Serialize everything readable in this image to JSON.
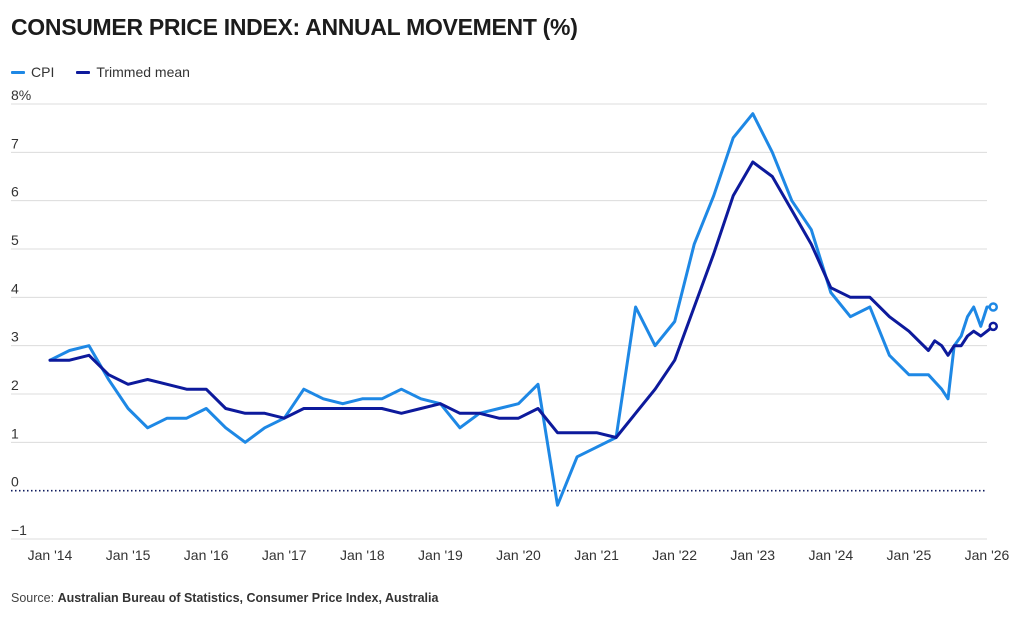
{
  "header": {
    "title": "CONSUMER PRICE INDEX: ANNUAL MOVEMENT (%)"
  },
  "legend": [
    {
      "label": "CPI",
      "color": "#1e88e5"
    },
    {
      "label": "Trimmed mean",
      "color": "#0d1a9c"
    }
  ],
  "footer": {
    "source_label": "Source: ",
    "source_text": "Australian Bureau of Statistics, Consumer Price Index, Australia"
  },
  "chart_data": {
    "type": "line",
    "ylim": [
      -1,
      8
    ],
    "yticks": [
      "−1",
      "0",
      "1",
      "2",
      "3",
      "4",
      "5",
      "6",
      "7",
      "8%"
    ],
    "ytick_values": [
      -1,
      0,
      1,
      2,
      3,
      4,
      5,
      6,
      7,
      8
    ],
    "xticks": [
      "Jan '14",
      "Jan '15",
      "Jan '16",
      "Jan '17",
      "Jan '18",
      "Jan '19",
      "Jan '20",
      "Jan '21",
      "Jan '22",
      "Jan '23",
      "Jan '24",
      "Jan '25",
      "Jan '26"
    ],
    "xtick_values": [
      2014,
      2015,
      2016,
      2017,
      2018,
      2019,
      2020,
      2021,
      2022,
      2023,
      2024,
      2025,
      2026
    ],
    "xlim": [
      2014,
      2026
    ],
    "zero_line": true,
    "grid": true,
    "legend_position": "top-left",
    "series": [
      {
        "name": "CPI",
        "color": "#1e88e5",
        "points": [
          [
            2014.0,
            2.7
          ],
          [
            2014.25,
            2.9
          ],
          [
            2014.5,
            3.0
          ],
          [
            2014.75,
            2.3
          ],
          [
            2015.0,
            1.7
          ],
          [
            2015.25,
            1.3
          ],
          [
            2015.5,
            1.5
          ],
          [
            2015.75,
            1.5
          ],
          [
            2016.0,
            1.7
          ],
          [
            2016.25,
            1.3
          ],
          [
            2016.5,
            1.0
          ],
          [
            2016.75,
            1.3
          ],
          [
            2017.0,
            1.5
          ],
          [
            2017.25,
            2.1
          ],
          [
            2017.5,
            1.9
          ],
          [
            2017.75,
            1.8
          ],
          [
            2018.0,
            1.9
          ],
          [
            2018.25,
            1.9
          ],
          [
            2018.5,
            2.1
          ],
          [
            2018.75,
            1.9
          ],
          [
            2019.0,
            1.8
          ],
          [
            2019.25,
            1.3
          ],
          [
            2019.5,
            1.6
          ],
          [
            2019.75,
            1.7
          ],
          [
            2020.0,
            1.8
          ],
          [
            2020.25,
            2.2
          ],
          [
            2020.5,
            -0.3
          ],
          [
            2020.75,
            0.7
          ],
          [
            2021.0,
            0.9
          ],
          [
            2021.25,
            1.1
          ],
          [
            2021.5,
            3.8
          ],
          [
            2021.75,
            3.0
          ],
          [
            2022.0,
            3.5
          ],
          [
            2022.25,
            5.1
          ],
          [
            2022.5,
            6.1
          ],
          [
            2022.75,
            7.3
          ],
          [
            2023.0,
            7.8
          ],
          [
            2023.25,
            7.0
          ],
          [
            2023.5,
            6.0
          ],
          [
            2023.75,
            5.4
          ],
          [
            2024.0,
            4.1
          ],
          [
            2024.25,
            3.6
          ],
          [
            2024.5,
            3.8
          ],
          [
            2024.75,
            2.8
          ],
          [
            2025.0,
            2.4
          ],
          [
            2025.25,
            2.4
          ],
          [
            2025.42,
            2.1
          ],
          [
            2025.5,
            1.9
          ],
          [
            2025.58,
            3.0
          ],
          [
            2025.67,
            3.2
          ],
          [
            2025.75,
            3.6
          ],
          [
            2025.83,
            3.8
          ],
          [
            2025.92,
            3.4
          ],
          [
            2026.0,
            3.8
          ],
          [
            2026.08,
            3.8
          ]
        ]
      },
      {
        "name": "Trimmed mean",
        "color": "#0d1a9c",
        "points": [
          [
            2014.0,
            2.7
          ],
          [
            2014.25,
            2.7
          ],
          [
            2014.5,
            2.8
          ],
          [
            2014.75,
            2.4
          ],
          [
            2015.0,
            2.2
          ],
          [
            2015.25,
            2.3
          ],
          [
            2015.5,
            2.2
          ],
          [
            2015.75,
            2.1
          ],
          [
            2016.0,
            2.1
          ],
          [
            2016.25,
            1.7
          ],
          [
            2016.5,
            1.6
          ],
          [
            2016.75,
            1.6
          ],
          [
            2017.0,
            1.5
          ],
          [
            2017.25,
            1.7
          ],
          [
            2017.5,
            1.7
          ],
          [
            2017.75,
            1.7
          ],
          [
            2018.0,
            1.7
          ],
          [
            2018.25,
            1.7
          ],
          [
            2018.5,
            1.6
          ],
          [
            2018.75,
            1.7
          ],
          [
            2019.0,
            1.8
          ],
          [
            2019.25,
            1.6
          ],
          [
            2019.5,
            1.6
          ],
          [
            2019.75,
            1.5
          ],
          [
            2020.0,
            1.5
          ],
          [
            2020.25,
            1.7
          ],
          [
            2020.5,
            1.2
          ],
          [
            2020.75,
            1.2
          ],
          [
            2021.0,
            1.2
          ],
          [
            2021.25,
            1.1
          ],
          [
            2021.5,
            1.6
          ],
          [
            2021.75,
            2.1
          ],
          [
            2022.0,
            2.7
          ],
          [
            2022.25,
            3.8
          ],
          [
            2022.5,
            4.9
          ],
          [
            2022.75,
            6.1
          ],
          [
            2023.0,
            6.8
          ],
          [
            2023.25,
            6.5
          ],
          [
            2023.5,
            5.8
          ],
          [
            2023.75,
            5.1
          ],
          [
            2024.0,
            4.2
          ],
          [
            2024.25,
            4.0
          ],
          [
            2024.5,
            4.0
          ],
          [
            2024.75,
            3.6
          ],
          [
            2025.0,
            3.3
          ],
          [
            2025.25,
            2.9
          ],
          [
            2025.33,
            3.1
          ],
          [
            2025.42,
            3.0
          ],
          [
            2025.5,
            2.8
          ],
          [
            2025.58,
            3.0
          ],
          [
            2025.67,
            3.0
          ],
          [
            2025.75,
            3.2
          ],
          [
            2025.83,
            3.3
          ],
          [
            2025.92,
            3.2
          ],
          [
            2026.0,
            3.3
          ],
          [
            2026.08,
            3.4
          ]
        ]
      }
    ]
  }
}
